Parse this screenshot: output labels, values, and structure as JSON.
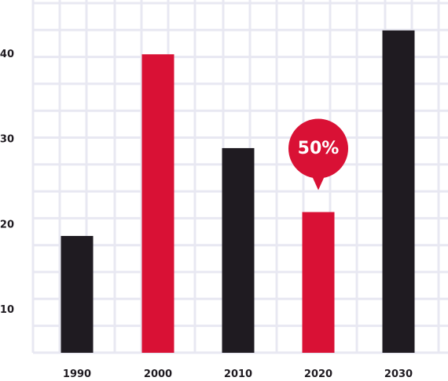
{
  "chart_data": {
    "type": "bar",
    "title": "",
    "xlabel": "",
    "ylabel": "",
    "categories": [
      "1990",
      "2000",
      "2010",
      "2020",
      "2030"
    ],
    "values": [
      18.7,
      40.0,
      29.0,
      21.5,
      42.8
    ],
    "bar_colors": [
      "#1f1b21",
      "#d91135",
      "#1f1b21",
      "#d91135",
      "#1f1b21"
    ],
    "ylim": [
      5,
      46
    ],
    "yticks": [
      10,
      20,
      30,
      40
    ],
    "grid": true,
    "grid_color": "#e8e8f2",
    "annotation": {
      "text": "50%",
      "category": "2020",
      "color": "#d91135"
    }
  }
}
